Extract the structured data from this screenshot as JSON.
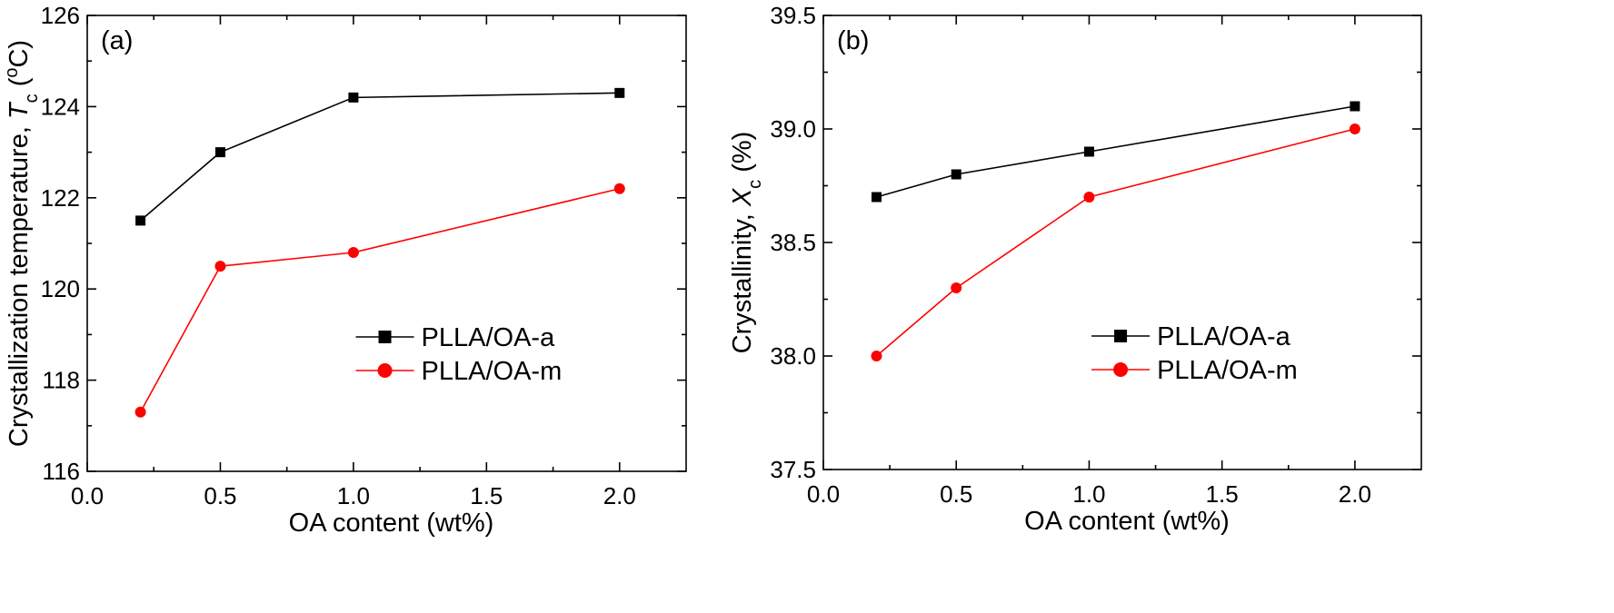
{
  "chart_data": [
    {
      "type": "line",
      "panel_label": "(a)",
      "xlabel": "OA content (wt%)",
      "ylabel_main": "Crystallization temperature, ",
      "ylabel_var": "T",
      "ylabel_sub": "c",
      "ylabel_open": " (",
      "ylabel_sup": "o",
      "ylabel_close": "C)",
      "xlim": [
        0.0,
        2.25
      ],
      "ylim": [
        116,
        126
      ],
      "xticks": [
        0.0,
        0.5,
        1.0,
        1.5,
        2.0
      ],
      "xtick_labels": [
        "0.0",
        "0.5",
        "1.0",
        "1.5",
        "2.0"
      ],
      "yticks": [
        116,
        118,
        120,
        122,
        124,
        126
      ],
      "ytick_labels": [
        "116",
        "118",
        "120",
        "122",
        "124",
        "126"
      ],
      "legend_position": "center-right",
      "x": [
        0.2,
        0.5,
        1.0,
        2.0
      ],
      "series": [
        {
          "name": "PLLA/OA-a",
          "marker": "square",
          "color": "#000000",
          "values": [
            121.5,
            123.0,
            124.2,
            124.3
          ]
        },
        {
          "name": "PLLA/OA-m",
          "marker": "circle",
          "color": "#ff0000",
          "values": [
            117.3,
            120.5,
            120.8,
            122.2
          ]
        }
      ]
    },
    {
      "type": "line",
      "panel_label": "(b)",
      "xlabel": "OA content (wt%)",
      "ylabel_main": "Crystallinity, ",
      "ylabel_var": "X",
      "ylabel_sub": "c",
      "ylabel_open": " (%)",
      "ylabel_sup": "",
      "ylabel_close": "",
      "xlim": [
        0.0,
        2.25
      ],
      "ylim": [
        37.5,
        39.5
      ],
      "xticks": [
        0.0,
        0.5,
        1.0,
        1.5,
        2.0
      ],
      "xtick_labels": [
        "0.0",
        "0.5",
        "1.0",
        "1.5",
        "2.0"
      ],
      "yticks": [
        37.5,
        38.0,
        38.5,
        39.0,
        39.5
      ],
      "ytick_labels": [
        "37.5",
        "38.0",
        "38.5",
        "39.0",
        "39.5"
      ],
      "legend_position": "center-right",
      "x": [
        0.2,
        0.5,
        1.0,
        2.0
      ],
      "series": [
        {
          "name": "PLLA/OA-a",
          "marker": "square",
          "color": "#000000",
          "values": [
            38.7,
            38.8,
            38.9,
            39.1
          ]
        },
        {
          "name": "PLLA/OA-m",
          "marker": "circle",
          "color": "#ff0000",
          "values": [
            38.0,
            38.3,
            38.7,
            39.0
          ]
        }
      ]
    }
  ]
}
